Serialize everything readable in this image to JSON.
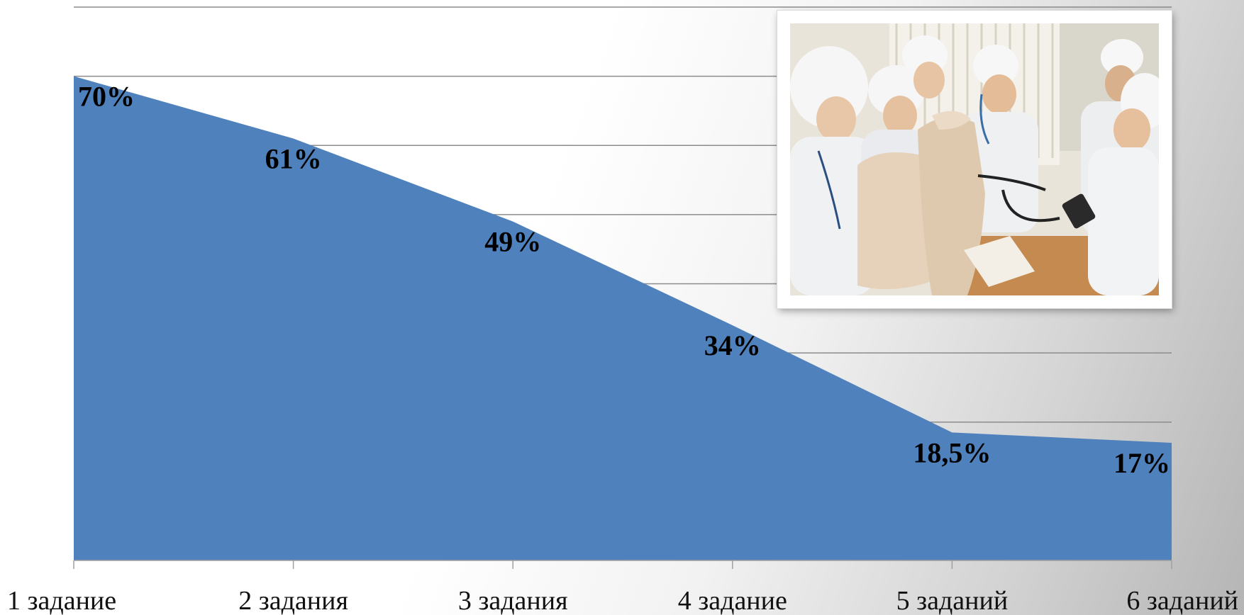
{
  "chart_data": {
    "type": "area",
    "categories": [
      "1 задание",
      "2 задания",
      "3 задания",
      "4 задание",
      "5 заданий",
      "6 заданий"
    ],
    "values": [
      70,
      61,
      49,
      34,
      18.5,
      17
    ],
    "data_labels": [
      "70%",
      "61%",
      "49%",
      "34%",
      "18,5%",
      "17%"
    ],
    "ylim": [
      0,
      80
    ],
    "grid": true,
    "series_color": "#4f81bd",
    "title": "",
    "xlabel": "",
    "ylabel": ""
  },
  "photo": {
    "description_icon": "photo-students-with-manikin"
  }
}
